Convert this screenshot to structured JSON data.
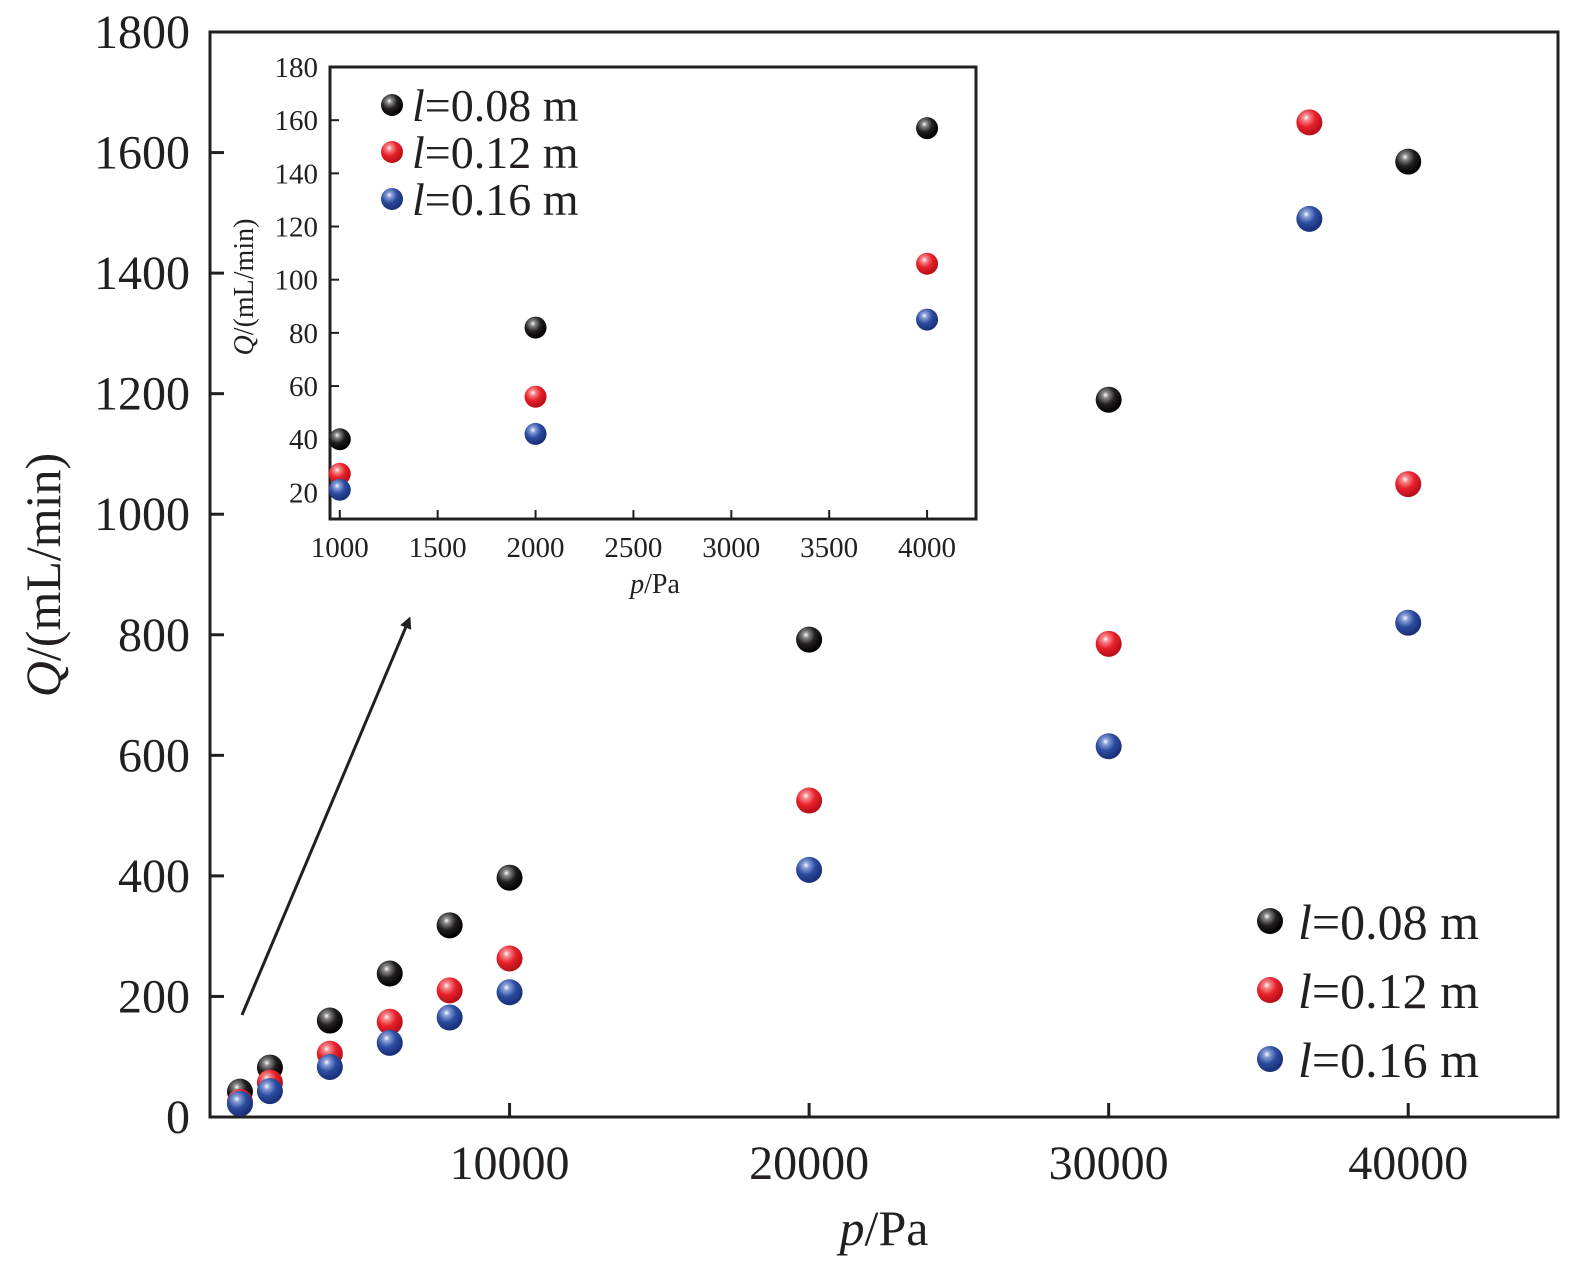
{
  "chart_data": [
    {
      "type": "scatter",
      "title": "",
      "xlabel_var": "p",
      "xlabel_unit": "/Pa",
      "ylabel_var": "Q",
      "ylabel_unit": "/(mL/min)",
      "xlim": [
        0,
        45000
      ],
      "ylim": [
        0,
        1800
      ],
      "xticks": [
        10000,
        20000,
        30000,
        40000
      ],
      "yticks": [
        0,
        200,
        400,
        600,
        800,
        1000,
        1200,
        1400,
        1600,
        1800
      ],
      "legend_position": "bottom-right",
      "series": [
        {
          "name_var": "l",
          "name_rest": "=0.08 m",
          "color": "#231f20",
          "x": [
            1000,
            2000,
            4000,
            6000,
            8000,
            10000,
            20000,
            30000,
            40000
          ],
          "y": [
            42,
            82,
            160,
            238,
            318,
            397,
            792,
            1190,
            1585
          ]
        },
        {
          "name_var": "l",
          "name_rest": "=0.12 m",
          "color": "#e8202a",
          "x": [
            1000,
            2000,
            4000,
            6000,
            8000,
            10000,
            20000,
            30000,
            36700,
            40000
          ],
          "y": [
            25,
            57,
            105,
            158,
            210,
            263,
            525,
            785,
            1650,
            1050
          ]
        },
        {
          "name_var": "l",
          "name_rest": "=0.16 m",
          "color": "#2c4ca0",
          "x": [
            1000,
            2000,
            4000,
            6000,
            8000,
            10000,
            20000,
            30000,
            36700,
            40000
          ],
          "y": [
            22,
            43,
            83,
            123,
            165,
            207,
            410,
            615,
            1490,
            820
          ]
        }
      ]
    },
    {
      "type": "scatter",
      "title": "",
      "xlabel_var": "p",
      "xlabel_unit": "/Pa",
      "ylabel_var": "Q",
      "ylabel_unit": "/(mL/min)",
      "xlim": [
        950,
        4250
      ],
      "ylim": [
        10,
        180
      ],
      "xticks": [
        1000,
        1500,
        2000,
        2500,
        3000,
        3500,
        4000
      ],
      "yticks": [
        20,
        40,
        60,
        80,
        100,
        120,
        140,
        160,
        180
      ],
      "legend_position": "top-left",
      "series": [
        {
          "name_var": "l",
          "name_rest": "=0.08 m",
          "color": "#231f20",
          "x": [
            1000,
            2000,
            4000
          ],
          "y": [
            40,
            82,
            157
          ]
        },
        {
          "name_var": "l",
          "name_rest": "=0.12 m",
          "color": "#e8202a",
          "x": [
            1000,
            2000,
            4000
          ],
          "y": [
            27,
            56,
            106
          ]
        },
        {
          "name_var": "l",
          "name_rest": "=0.16 m",
          "color": "#2c4ca0",
          "x": [
            1000,
            2000,
            4000
          ],
          "y": [
            21,
            42,
            85
          ]
        }
      ]
    }
  ]
}
